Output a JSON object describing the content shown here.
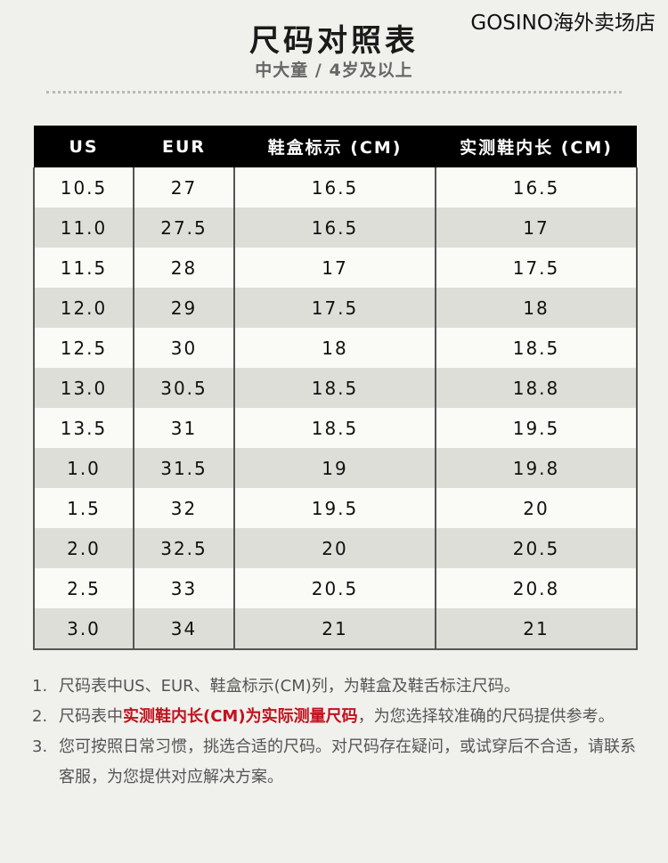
{
  "header": {
    "title": "尺码对照表",
    "subtitle": "中大童 / 4岁及以上",
    "shop": "GOSINO海外卖场店"
  },
  "table": {
    "headers": [
      "US",
      "EUR",
      "鞋盒标示 (CM)",
      "实测鞋内长 (CM)"
    ],
    "rows": [
      [
        "10.5",
        "27",
        "16.5",
        "16.5"
      ],
      [
        "11.0",
        "27.5",
        "16.5",
        "17"
      ],
      [
        "11.5",
        "28",
        "17",
        "17.5"
      ],
      [
        "12.0",
        "29",
        "17.5",
        "18"
      ],
      [
        "12.5",
        "30",
        "18",
        "18.5"
      ],
      [
        "13.0",
        "30.5",
        "18.5",
        "18.8"
      ],
      [
        "13.5",
        "31",
        "18.5",
        "19.5"
      ],
      [
        "1.0",
        "31.5",
        "19",
        "19.8"
      ],
      [
        "1.5",
        "32",
        "19.5",
        "20"
      ],
      [
        "2.0",
        "32.5",
        "20",
        "20.5"
      ],
      [
        "2.5",
        "33",
        "20.5",
        "20.8"
      ],
      [
        "3.0",
        "34",
        "21",
        "21"
      ]
    ]
  },
  "notes": {
    "n1_num": "1.",
    "n1_text": "尺码表中US、EUR、鞋盒标示(CM)列，为鞋盒及鞋舌标注尺码。",
    "n2_num": "2.",
    "n2_pre": "尺码表中",
    "n2_highlight": "实测鞋内长(CM)为实际测量尺码",
    "n2_post": "，为您选择较准确的尺码提供参考。",
    "n3_num": "3.",
    "n3_text": "您可按照日常习惯，挑选合适的尺码。对尺码存在疑问，或试穿后不合适，请联系客服，为您提供对应解决方案。"
  },
  "colors": {
    "background": "#f0f0ec",
    "header_bg": "#000000",
    "row_alt": "#deded9",
    "highlight": "#c1121f"
  }
}
